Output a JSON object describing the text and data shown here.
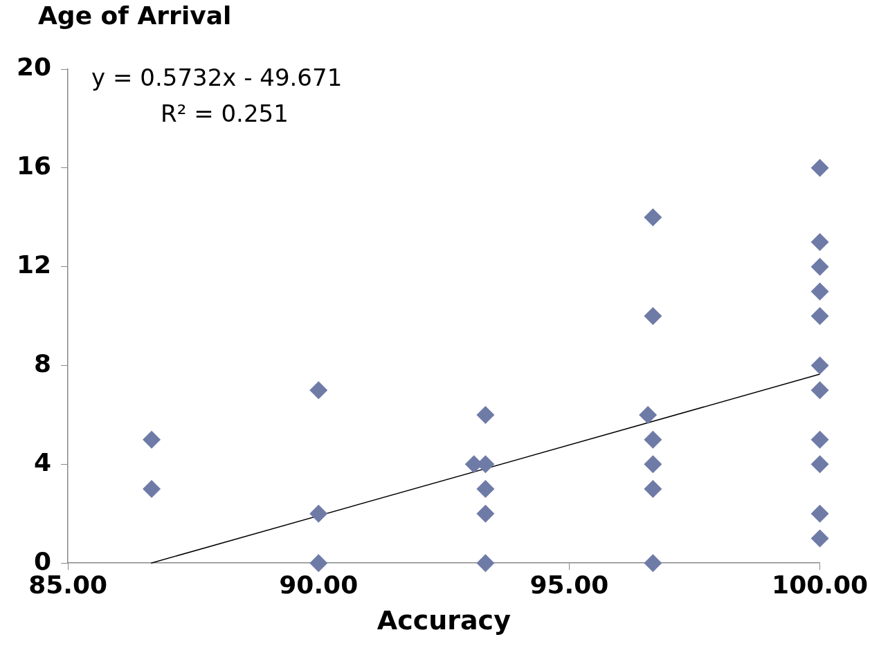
{
  "chart_data": {
    "type": "scatter",
    "xlabel": "Accuracy",
    "ylabel": "Age of Arrival",
    "xlim": [
      85,
      100
    ],
    "xticks": [
      {
        "value": 85,
        "label": "85.00"
      },
      {
        "value": 90,
        "label": "90.00"
      },
      {
        "value": 95,
        "label": "95.00"
      },
      {
        "value": 100,
        "label": "100.00"
      }
    ],
    "ylim": [
      0,
      20
    ],
    "yticks": [
      0,
      4,
      8,
      12,
      16,
      20
    ],
    "grid": false,
    "legend": false,
    "marker": "diamond",
    "annotations": [
      "y = 0.5732x - 49.671",
      "R² = 0.251"
    ],
    "series": [
      {
        "color": "#6f7ba7",
        "x": [
          86.67,
          86.67,
          90,
          90,
          90,
          93.33,
          93.1,
          93.33,
          93.33,
          93.33,
          93.33,
          96.67,
          96.67,
          96.57,
          96.67,
          96.67,
          96.67,
          96.67,
          100,
          100,
          100,
          100,
          100,
          100,
          100,
          100,
          100,
          100,
          100
        ],
        "values": [
          3,
          5,
          7,
          2,
          0,
          6,
          4,
          4,
          3,
          2,
          0,
          14,
          10,
          6,
          5,
          4,
          3,
          0,
          16,
          13,
          12,
          11,
          10,
          8,
          7,
          5,
          4,
          2,
          1
        ]
      },
      {
        "type": "line",
        "color": "#000000",
        "marker": "none",
        "x": [
          86.66,
          100
        ],
        "values": [
          0,
          7.65
        ]
      }
    ]
  }
}
